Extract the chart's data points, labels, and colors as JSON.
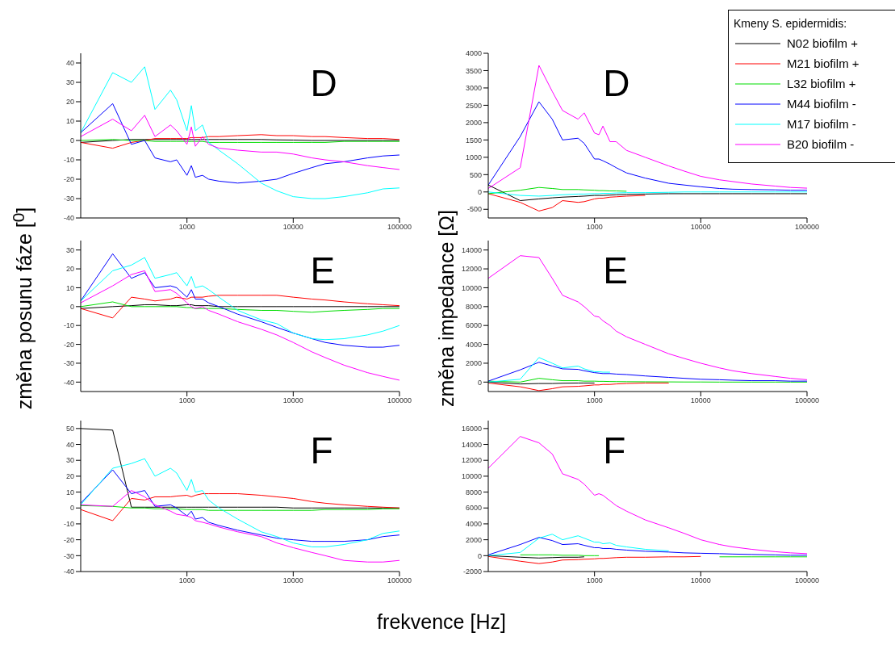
{
  "chart_data": [
    {
      "type": "line",
      "title": "D",
      "log": "x",
      "xlim": [
        100,
        100000
      ],
      "xticks": [
        1000,
        10000,
        100000
      ],
      "ylim": [
        -40,
        45
      ],
      "yticks": [
        -40,
        -30,
        -20,
        -10,
        0,
        10,
        20,
        30,
        40
      ],
      "grid": false,
      "legend": false,
      "marker": "none",
      "line_style": "solid",
      "x": [
        100,
        200,
        300,
        400,
        500,
        700,
        800,
        1000,
        1100,
        1200,
        1400,
        1600,
        2000,
        3000,
        5000,
        7000,
        10000,
        15000,
        20000,
        30000,
        50000,
        70000,
        100000
      ],
      "series": [
        {
          "color": "#000000",
          "values": [
            -1,
            0,
            0.5,
            0.5,
            0.5,
            0.5,
            0.5,
            0.5,
            0.5,
            0.5,
            0.5,
            0.5,
            0.5,
            0.5,
            0.5,
            0.3,
            0.2,
            0,
            0,
            0,
            0,
            0,
            0
          ]
        },
        {
          "color": "#ff0000",
          "values": [
            -1,
            -4,
            -1,
            0,
            1,
            1,
            1,
            1,
            1.5,
            1.5,
            1.5,
            2,
            2,
            2.5,
            3,
            2.5,
            2.5,
            2,
            2,
            1.5,
            1,
            1,
            0.5
          ]
        },
        {
          "color": "#00dd00",
          "values": [
            0,
            0.5,
            0,
            0,
            -0.5,
            -0.5,
            -0.5,
            -0.5,
            -0.5,
            -0.5,
            -0.5,
            -1,
            -1,
            -1,
            -1,
            -1,
            -1,
            -1,
            -1,
            -0.5,
            -0.5,
            -0.5,
            -0.5
          ]
        },
        {
          "color": "#0000ff",
          "values": [
            4,
            19,
            -2,
            0,
            -9,
            -11,
            -10,
            -18,
            -13,
            -19,
            -18,
            -20,
            -21,
            -22,
            -21,
            -20,
            -17,
            -14,
            -12,
            -11,
            -9,
            -8,
            -7.5
          ]
        },
        {
          "color": "#00ffff",
          "values": [
            4,
            35,
            30,
            38,
            16,
            26,
            21,
            5,
            18,
            5,
            8,
            -1,
            -5,
            -12,
            -22,
            -26,
            -29,
            -30,
            -30,
            -29,
            -27,
            -25,
            -24.5
          ]
        },
        {
          "color": "#ff00ff",
          "values": [
            2,
            11,
            5,
            13,
            2,
            8,
            5,
            -2,
            7,
            -3,
            2,
            -2,
            -4,
            -5,
            -6,
            -6,
            -7,
            -9,
            -10,
            -11,
            -13,
            -14,
            -15
          ]
        }
      ]
    },
    {
      "type": "line",
      "title": "D",
      "legend_title": "Kmeny S. epidermidis:",
      "log": "x",
      "xlim": [
        100,
        100000
      ],
      "xticks": [
        1000,
        10000,
        100000
      ],
      "ylim": [
        -750,
        4000
      ],
      "yticks": [
        -500,
        0,
        500,
        1000,
        1500,
        2000,
        2500,
        3000,
        3500,
        4000
      ],
      "grid": false,
      "legend": "top right",
      "marker": "none",
      "line_style": "solid",
      "x": [
        100,
        200,
        300,
        400,
        500,
        700,
        800,
        1000,
        1100,
        1200,
        1400,
        1600,
        2000,
        3000,
        5000,
        7000,
        10000,
        15000,
        20000,
        30000,
        50000,
        70000,
        100000
      ],
      "series": [
        {
          "name": "N02 biofilm +",
          "color": "#000000",
          "values": [
            200,
            -250,
            -200,
            -170,
            -150,
            -130,
            -120,
            -100,
            -100,
            -100,
            -90,
            -80,
            -70,
            -60,
            -50,
            -50,
            -50,
            -50,
            -50,
            -50,
            -50,
            -50,
            -50
          ]
        },
        {
          "name": "M21 biofilm +",
          "color": "#ff0000",
          "values": [
            -50,
            -300,
            -550,
            -450,
            -250,
            -300,
            -280,
            -200,
            -180,
            -180,
            -150,
            -140,
            -120,
            -100,
            null,
            null,
            null,
            null,
            null,
            null,
            null,
            null,
            null
          ]
        },
        {
          "name": "L32 biofilm +",
          "color": "#00dd00",
          "values": [
            -50,
            50,
            130,
            100,
            70,
            70,
            60,
            50,
            40,
            40,
            30,
            30,
            20,
            null,
            null,
            null,
            null,
            null,
            null,
            null,
            null,
            null,
            null
          ]
        },
        {
          "name": "M44 biofilm -",
          "color": "#0000ff",
          "values": [
            200,
            1600,
            2600,
            2100,
            1500,
            1550,
            1400,
            950,
            950,
            900,
            800,
            700,
            550,
            400,
            250,
            200,
            150,
            100,
            80,
            70,
            60,
            50,
            50
          ]
        },
        {
          "name": "M17 biofilm -",
          "color": "#00ffff",
          "values": [
            0,
            -100,
            -120,
            -100,
            -80,
            -60,
            -60,
            -50,
            -50,
            -40,
            -40,
            -30,
            -20,
            -20,
            -10,
            0,
            0,
            0,
            0,
            0,
            0,
            0,
            0
          ]
        },
        {
          "name": "B20 biofilm -",
          "color": "#ff00ff",
          "values": [
            100,
            700,
            3650,
            2900,
            2350,
            2100,
            2280,
            1700,
            1650,
            1900,
            1450,
            1450,
            1200,
            1000,
            750,
            600,
            450,
            350,
            300,
            230,
            170,
            130,
            110
          ]
        }
      ]
    },
    {
      "type": "line",
      "title": "E",
      "ylabel": "změna posunu fáze [$^{0}$]",
      "log": "x",
      "xlim": [
        100,
        100000
      ],
      "xticks": [
        1000,
        10000,
        100000
      ],
      "ylim": [
        -45,
        35
      ],
      "yticks": [
        -40,
        -30,
        -20,
        -10,
        0,
        10,
        20,
        30
      ],
      "grid": false,
      "legend": false,
      "marker": "none",
      "line_style": "solid",
      "x": [
        100,
        200,
        300,
        400,
        500,
        700,
        800,
        1000,
        1100,
        1200,
        1400,
        1600,
        2000,
        3000,
        5000,
        7000,
        10000,
        15000,
        20000,
        30000,
        50000,
        70000,
        100000
      ],
      "series": [
        {
          "color": "#000000",
          "values": [
            -1,
            0,
            0.5,
            1,
            1,
            0.5,
            0.5,
            1,
            1,
            0.5,
            0.5,
            0.5,
            0,
            0,
            0,
            0,
            0,
            0,
            0,
            0,
            0,
            0,
            0
          ]
        },
        {
          "color": "#ff0000",
          "values": [
            -1,
            -6,
            5,
            4,
            3,
            4,
            5,
            4,
            5,
            5,
            5,
            5.5,
            6,
            6,
            6,
            6,
            5,
            4,
            3.5,
            2.5,
            1.5,
            1,
            0.5
          ]
        },
        {
          "color": "#00dd00",
          "values": [
            0,
            2.5,
            0,
            0,
            0,
            0,
            0,
            -0.5,
            -0.5,
            -1,
            -1,
            -1,
            -1,
            -1.5,
            -2,
            -2,
            -2.5,
            -3,
            -2.5,
            -2,
            -1.5,
            -1,
            -1
          ]
        },
        {
          "color": "#0000ff",
          "values": [
            3,
            28,
            15,
            18,
            10,
            11,
            10,
            5,
            9,
            4,
            4,
            2,
            0,
            -4,
            -8,
            -11,
            -14,
            -17,
            -19,
            -20.5,
            -21.5,
            -21.5,
            -20.5
          ]
        },
        {
          "color": "#00ffff",
          "values": [
            3,
            19,
            22,
            26,
            15,
            17,
            18,
            11,
            16,
            10,
            11,
            9,
            5,
            -2,
            -7,
            -9,
            -14,
            -17,
            -17.5,
            -17,
            -15,
            -13,
            -10
          ]
        },
        {
          "color": "#ff00ff",
          "values": [
            2,
            11,
            17,
            19,
            8,
            9,
            7,
            2,
            0,
            -1,
            0,
            -2,
            -4,
            -8,
            -12,
            -15,
            -19,
            -24,
            -27,
            -31,
            -35,
            -37,
            -39
          ]
        }
      ]
    },
    {
      "type": "line",
      "title": "E",
      "ylabel": "změna impedance [Ω]",
      "log": "x",
      "xlim": [
        100,
        100000
      ],
      "xticks": [
        1000,
        10000,
        100000
      ],
      "ylim": [
        -1000,
        15000
      ],
      "yticks": [
        0,
        2000,
        4000,
        6000,
        8000,
        10000,
        12000,
        14000
      ],
      "grid": false,
      "legend": false,
      "marker": "none",
      "line_style": "solid",
      "x": [
        100,
        200,
        300,
        400,
        500,
        700,
        800,
        1000,
        1100,
        1200,
        1400,
        1600,
        2000,
        3000,
        5000,
        7000,
        10000,
        15000,
        20000,
        30000,
        50000,
        70000,
        100000
      ],
      "series": [
        {
          "color": "#000000",
          "values": [
            0,
            -200,
            -150,
            -150,
            -120,
            -100,
            -100,
            -100,
            null,
            null,
            null,
            null,
            null,
            null,
            null,
            null,
            null,
            null,
            null,
            null,
            null,
            null,
            null
          ]
        },
        {
          "color": "#ff0000",
          "values": [
            -100,
            -500,
            -900,
            -700,
            -500,
            -450,
            -400,
            -300,
            -300,
            -250,
            -250,
            -200,
            -150,
            -100,
            -100,
            null,
            null,
            null,
            null,
            null,
            null,
            null,
            null
          ]
        },
        {
          "color": "#00dd00",
          "values": [
            100,
            0,
            400,
            250,
            150,
            150,
            100,
            100,
            80,
            80,
            60,
            50,
            40,
            30,
            20,
            10,
            10,
            0,
            0,
            0,
            0,
            0,
            0
          ]
        },
        {
          "color": "#0000ff",
          "values": [
            100,
            1300,
            2100,
            1700,
            1400,
            1350,
            1200,
            1000,
            950,
            900,
            900,
            850,
            800,
            650,
            500,
            400,
            300,
            250,
            200,
            150,
            150,
            100,
            100
          ]
        },
        {
          "color": "#00ffff",
          "values": [
            0,
            300,
            2600,
            2000,
            1500,
            1700,
            1400,
            1100,
            1100,
            1050,
            1050,
            null,
            null,
            null,
            null,
            null,
            null,
            null,
            null,
            null,
            null,
            null,
            null
          ]
        },
        {
          "color": "#ff00ff",
          "values": [
            11000,
            13400,
            13200,
            11000,
            9200,
            8500,
            8000,
            7000,
            6900,
            6500,
            6000,
            5400,
            4800,
            4000,
            3000,
            2500,
            2000,
            1500,
            1200,
            900,
            600,
            400,
            250
          ]
        }
      ]
    },
    {
      "type": "line",
      "title": "F",
      "xlabel": "frekvence [Hz]",
      "log": "x",
      "xlim": [
        100,
        100000
      ],
      "xticks": [
        1000,
        10000,
        100000
      ],
      "ylim": [
        -40,
        55
      ],
      "yticks": [
        -40,
        -30,
        -20,
        -10,
        0,
        10,
        20,
        30,
        40,
        50
      ],
      "grid": false,
      "legend": false,
      "marker": "none",
      "line_style": "solid",
      "x": [
        100,
        200,
        300,
        400,
        500,
        700,
        800,
        1000,
        1100,
        1200,
        1400,
        1600,
        2000,
        3000,
        5000,
        7000,
        10000,
        15000,
        20000,
        30000,
        50000,
        70000,
        100000
      ],
      "series": [
        {
          "color": "#000000",
          "values": [
            50,
            49,
            0.5,
            0.5,
            0.5,
            0.5,
            0.5,
            0.5,
            0.5,
            0.5,
            0.5,
            0.5,
            0.5,
            0.5,
            0.5,
            0.5,
            0,
            0,
            0,
            0,
            0,
            0,
            0
          ]
        },
        {
          "color": "#ff0000",
          "values": [
            -1,
            -8,
            6,
            5,
            7,
            7,
            7.5,
            8,
            7,
            8,
            9,
            9,
            9,
            9,
            8,
            7,
            6,
            4,
            3,
            2,
            1,
            0.5,
            0
          ]
        },
        {
          "color": "#00dd00",
          "values": [
            1.5,
            1,
            0,
            0,
            -0.5,
            -0.5,
            -0.5,
            -1,
            -1,
            -1,
            -1,
            -1.5,
            -1.5,
            -1.5,
            -1.5,
            -1.5,
            -1.5,
            -1.5,
            -1,
            -1,
            -1,
            -0.5,
            -0.5
          ]
        },
        {
          "color": "#0000ff",
          "values": [
            3,
            24,
            9,
            11,
            1,
            2,
            0,
            -5,
            -2,
            -7,
            -6,
            -9,
            -11,
            -14,
            -17,
            -19,
            -20,
            -21,
            -21,
            -21,
            -20,
            -18,
            -17
          ]
        },
        {
          "color": "#00ffff",
          "values": [
            2,
            25,
            28,
            31,
            20,
            25,
            22,
            11,
            18,
            10,
            11,
            5,
            0,
            -7,
            -15,
            -18,
            -22,
            -24.5,
            -24.5,
            -23,
            -20,
            -16,
            -14.5
          ]
        },
        {
          "color": "#ff00ff",
          "values": [
            2,
            1,
            11,
            7,
            2,
            -2,
            -4,
            -5,
            -6,
            -8,
            -9,
            -10,
            -12,
            -15,
            -18,
            -22,
            -25,
            -28,
            -30,
            -33,
            -34,
            -34,
            -33
          ]
        }
      ]
    },
    {
      "type": "line",
      "title": "F",
      "log": "x",
      "xlim": [
        100,
        100000
      ],
      "xticks": [
        1000,
        10000,
        100000
      ],
      "ylim": [
        -2000,
        17000
      ],
      "yticks": [
        -2000,
        0,
        2000,
        4000,
        6000,
        8000,
        10000,
        12000,
        14000,
        16000
      ],
      "grid": false,
      "legend": false,
      "marker": "none",
      "line_style": "solid",
      "x": [
        100,
        200,
        300,
        400,
        500,
        700,
        800,
        1000,
        1100,
        1200,
        1400,
        1600,
        2000,
        3000,
        5000,
        7000,
        10000,
        15000,
        20000,
        30000,
        50000,
        70000,
        100000
      ],
      "series": [
        {
          "color": "#000000",
          "values": [
            0,
            -200,
            -300,
            -250,
            -200,
            -200,
            -150,
            null,
            null,
            null,
            null,
            null,
            null,
            null,
            null,
            null,
            null,
            null,
            null,
            null,
            null,
            null,
            null
          ]
        },
        {
          "color": "#ff0000",
          "values": [
            -100,
            -700,
            -1000,
            -800,
            -550,
            -500,
            -450,
            -400,
            -350,
            -350,
            -300,
            -250,
            -200,
            -200,
            -150,
            -150,
            -100,
            null,
            null,
            null,
            null,
            null,
            null
          ]
        },
        {
          "color": "#00dd00",
          "values": [
            null,
            100,
            100,
            100,
            50,
            50,
            0,
            0,
            0,
            null,
            null,
            null,
            null,
            null,
            null,
            null,
            null,
            -150,
            -150,
            -150,
            -150,
            -150,
            -150
          ]
        },
        {
          "color": "#0000ff",
          "values": [
            100,
            1400,
            2300,
            1900,
            1400,
            1500,
            1300,
            1000,
            1000,
            900,
            900,
            800,
            700,
            550,
            450,
            350,
            300,
            250,
            200,
            150,
            100,
            50,
            50
          ]
        },
        {
          "color": "#00ffff",
          "values": [
            0,
            400,
            2200,
            2700,
            2000,
            2500,
            2200,
            1700,
            1700,
            1500,
            1600,
            1300,
            1100,
            800,
            600,
            null,
            null,
            null,
            null,
            null,
            null,
            null,
            null
          ]
        },
        {
          "color": "#ff00ff",
          "values": [
            11000,
            15000,
            14200,
            12800,
            10300,
            9600,
            9000,
            7600,
            7800,
            7600,
            6900,
            6300,
            5600,
            4500,
            3500,
            2800,
            2000,
            1400,
            1100,
            800,
            500,
            350,
            250
          ]
        }
      ]
    }
  ]
}
